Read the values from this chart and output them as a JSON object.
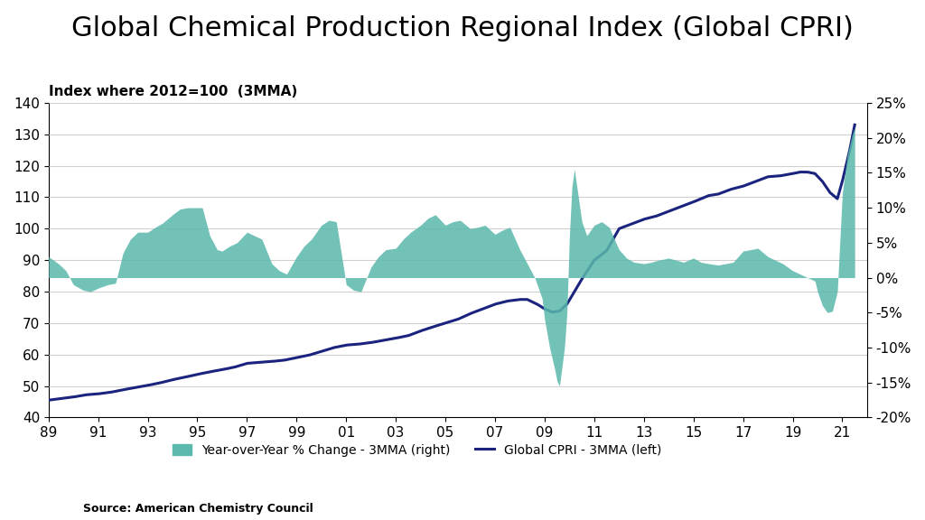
{
  "title": "Global Chemical Production Regional Index (Global CPRI)",
  "subtitle": "Index where 2012=100  (3MMA)",
  "source": "Source: American Chemistry Council",
  "ylim_left": [
    40,
    140
  ],
  "ylim_right": [
    -0.2,
    0.25
  ],
  "yticks_left": [
    40,
    50,
    60,
    70,
    80,
    90,
    100,
    110,
    120,
    130,
    140
  ],
  "yticks_right": [
    -0.2,
    -0.15,
    -0.1,
    -0.05,
    0.0,
    0.05,
    0.1,
    0.15,
    0.2,
    0.25
  ],
  "ytick_labels_right": [
    "-20%",
    "-15%",
    "-10%",
    "-5%",
    "0%",
    "5%",
    "10%",
    "15%",
    "20%",
    "25%"
  ],
  "xtick_years": [
    1989,
    1991,
    1993,
    1995,
    1997,
    1999,
    2001,
    2003,
    2005,
    2007,
    2009,
    2011,
    2013,
    2015,
    2017,
    2019,
    2021
  ],
  "xtick_labels": [
    "89",
    "91",
    "93",
    "95",
    "97",
    "99",
    "01",
    "03",
    "05",
    "07",
    "09",
    "11",
    "13",
    "15",
    "17",
    "19",
    "21"
  ],
  "bar_color": "#5ab8ac",
  "line_color": "#1a237e",
  "background_color": "#ffffff",
  "legend_bar_label": "Year-over-Year % Change - 3MMA (right)",
  "legend_line_label": "Global CPRI - 3MMA (left)",
  "title_fontsize": 22,
  "subtitle_fontsize": 11,
  "axis_fontsize": 11
}
